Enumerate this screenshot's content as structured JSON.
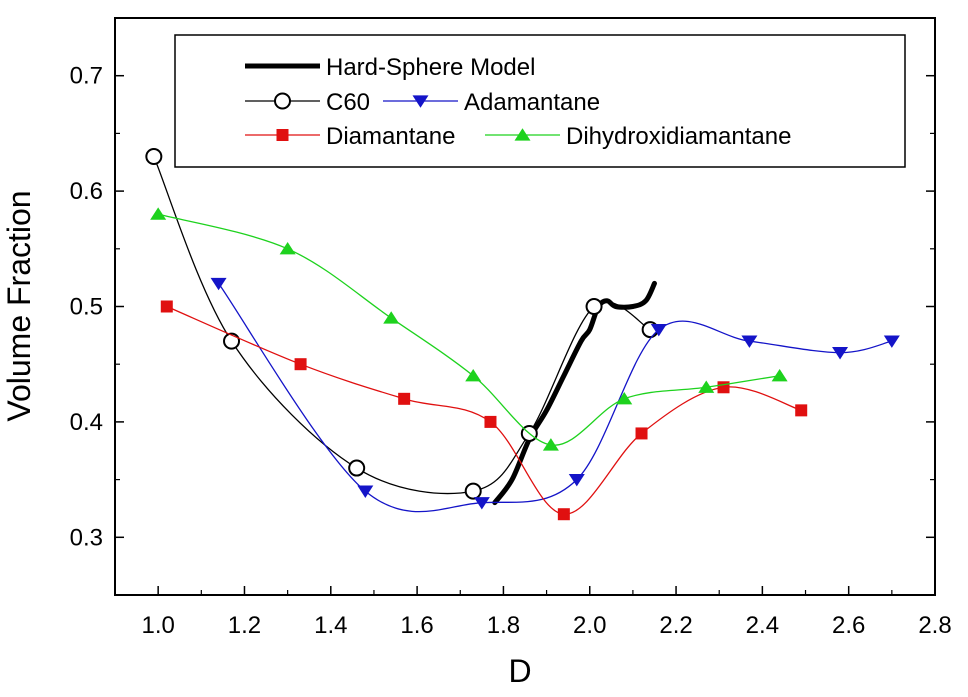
{
  "chart_data": {
    "type": "line",
    "title": "",
    "xlabel": "D",
    "ylabel": "Volume Fraction",
    "xlim": [
      0.9,
      2.8
    ],
    "ylim": [
      0.25,
      0.75
    ],
    "xticks": [
      1.0,
      1.2,
      1.4,
      1.6,
      1.8,
      2.0,
      2.2,
      2.4,
      2.6,
      2.8
    ],
    "xtick_labels": [
      "1.0",
      "1.2",
      "1.4",
      "1.6",
      "1.8",
      "2.0",
      "2.2",
      "2.4",
      "2.6",
      "2.8"
    ],
    "yticks": [
      0.3,
      0.4,
      0.5,
      0.6,
      0.7
    ],
    "ytick_labels": [
      "0.3",
      "0.4",
      "0.5",
      "0.6",
      "0.7"
    ],
    "grid": false,
    "legend_position": "top",
    "series": [
      {
        "name": "Hard-Sphere Model",
        "marker": "none",
        "color": "#000000",
        "thick": true,
        "x": [
          1.78,
          1.82,
          1.86,
          1.9,
          1.94,
          1.98,
          2.0,
          2.02,
          2.04,
          2.06,
          2.1,
          2.13,
          2.15
        ],
        "y": [
          0.33,
          0.35,
          0.385,
          0.41,
          0.44,
          0.47,
          0.48,
          0.5,
          0.505,
          0.5,
          0.5,
          0.505,
          0.52
        ]
      },
      {
        "name": "C60",
        "marker": "open-circle",
        "color": "#000000",
        "x": [
          0.99,
          1.17,
          1.46,
          1.73,
          1.86,
          2.01,
          2.14
        ],
        "y": [
          0.63,
          0.47,
          0.36,
          0.34,
          0.39,
          0.5,
          0.48
        ]
      },
      {
        "name": "Adamantane",
        "marker": "triangle-down",
        "color": "#1414c8",
        "x": [
          1.14,
          1.48,
          1.75,
          1.97,
          2.16,
          2.37,
          2.58,
          2.7
        ],
        "y": [
          0.52,
          0.34,
          0.33,
          0.35,
          0.48,
          0.47,
          0.46,
          0.47
        ]
      },
      {
        "name": "Diamantane",
        "marker": "square",
        "color": "#e01010",
        "x": [
          1.02,
          1.33,
          1.57,
          1.77,
          1.94,
          2.12,
          2.31,
          2.49
        ],
        "y": [
          0.5,
          0.45,
          0.42,
          0.4,
          0.32,
          0.39,
          0.43,
          0.41
        ]
      },
      {
        "name": "Dihydroxidiamantane",
        "marker": "triangle-up",
        "color": "#1ed21e",
        "x": [
          1.0,
          1.3,
          1.54,
          1.73,
          1.91,
          2.08,
          2.27,
          2.44
        ],
        "y": [
          0.58,
          0.55,
          0.49,
          0.44,
          0.38,
          0.42,
          0.43,
          0.44
        ]
      }
    ]
  }
}
